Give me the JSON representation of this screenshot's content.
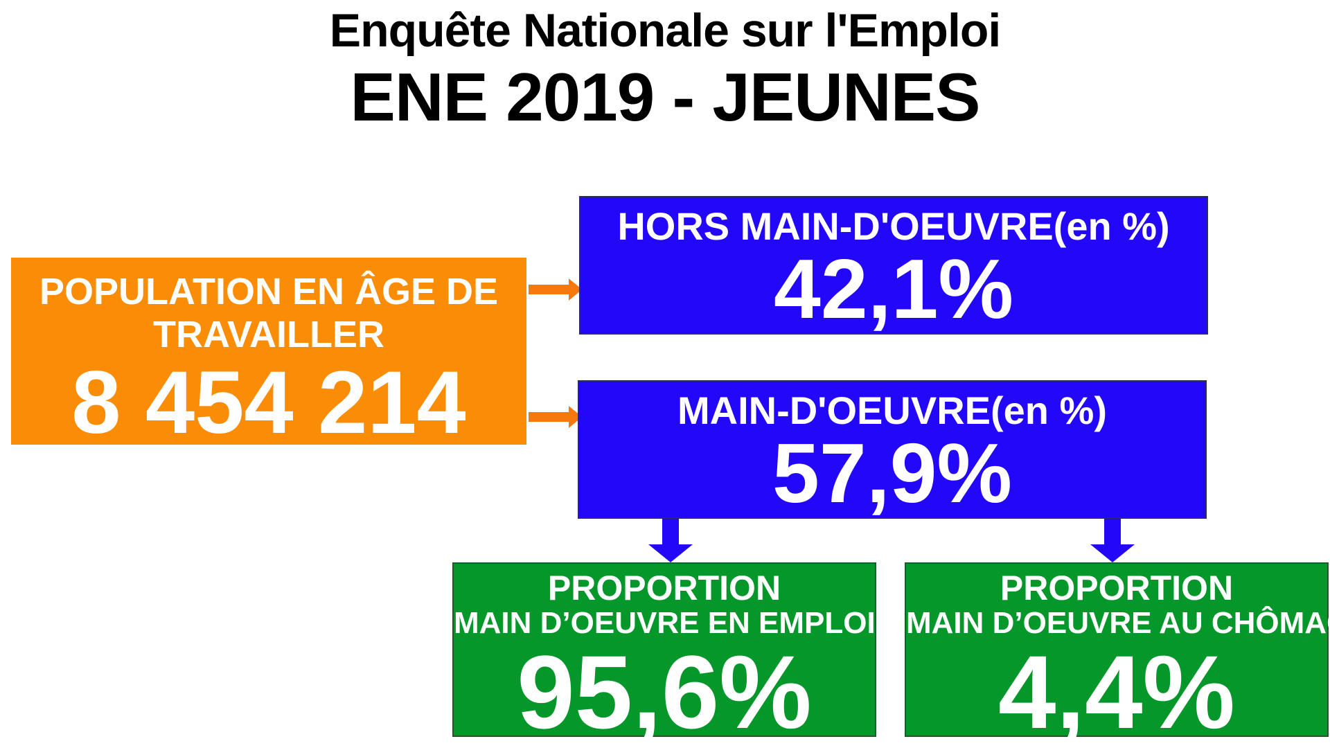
{
  "title": {
    "line1": "Enquête Nationale sur l'Emploi",
    "line2": "ENE 2019 - JEUNES"
  },
  "population": {
    "label_line1": "POPULATION EN ÂGE DE",
    "label_line2": "TRAVAILLER",
    "value": "8 454 214"
  },
  "hors_main_oeuvre": {
    "label": "HORS MAIN-D'OEUVRE(en %)",
    "value": "42,1%"
  },
  "main_oeuvre": {
    "label": "MAIN-D'OEUVRE(en %)",
    "value": "57,9%"
  },
  "emploi": {
    "label_line1": "PROPORTION",
    "label_line2": "MAIN D’OEUVRE EN EMPLOI",
    "value": "95,6%"
  },
  "chomage": {
    "label_line1": "PROPORTION",
    "label_line2": "MAIN D’OEUVRE AU CHÔMAGE",
    "value": "4,4%"
  },
  "colors": {
    "population_box": "#fb8c05",
    "main_oeuvre_boxes": "#2307f8",
    "proportion_boxes": "#05972a",
    "orange_arrow": "#f7780c",
    "blue_arrow": "#2307f8"
  }
}
